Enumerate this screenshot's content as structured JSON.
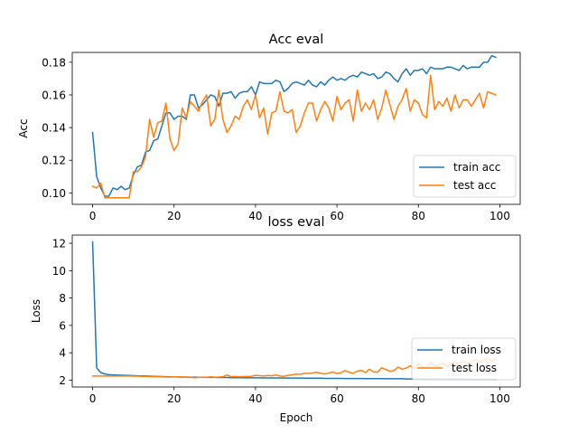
{
  "chart_data": [
    {
      "type": "line",
      "title": "Acc eval",
      "xlabel": "",
      "ylabel": "Acc",
      "xlim": [
        -5,
        105
      ],
      "ylim": [
        0.093,
        0.186
      ],
      "xticks": [
        0,
        20,
        40,
        60,
        80,
        100
      ],
      "yticks": [
        0.1,
        0.12,
        0.14,
        0.16,
        0.18
      ],
      "ytick_labels": [
        "0.10",
        "0.12",
        "0.14",
        "0.16",
        "0.18"
      ],
      "legend": "lower-right",
      "grid": false,
      "series": [
        {
          "name": "train acc",
          "color": "#1f77b4",
          "x": [
            0,
            1,
            2,
            3,
            4,
            5,
            6,
            7,
            8,
            9,
            10,
            11,
            12,
            13,
            14,
            15,
            16,
            17,
            18,
            19,
            20,
            21,
            22,
            23,
            24,
            25,
            26,
            27,
            28,
            29,
            30,
            31,
            32,
            33,
            34,
            35,
            36,
            37,
            38,
            39,
            40,
            41,
            42,
            43,
            44,
            45,
            46,
            47,
            48,
            49,
            50,
            51,
            52,
            53,
            54,
            55,
            56,
            57,
            58,
            59,
            60,
            61,
            62,
            63,
            64,
            65,
            66,
            67,
            68,
            69,
            70,
            71,
            72,
            73,
            74,
            75,
            76,
            77,
            78,
            79,
            80,
            81,
            82,
            83,
            84,
            85,
            86,
            87,
            88,
            89,
            90,
            91,
            92,
            93,
            94,
            95,
            96,
            97,
            98,
            99
          ],
          "values": [
            0.137,
            0.11,
            0.103,
            0.098,
            0.098,
            0.103,
            0.102,
            0.104,
            0.102,
            0.103,
            0.111,
            0.116,
            0.117,
            0.125,
            0.126,
            0.132,
            0.133,
            0.141,
            0.149,
            0.149,
            0.145,
            0.147,
            0.147,
            0.145,
            0.16,
            0.16,
            0.152,
            0.154,
            0.157,
            0.16,
            0.159,
            0.153,
            0.161,
            0.161,
            0.162,
            0.158,
            0.161,
            0.162,
            0.162,
            0.165,
            0.16,
            0.168,
            0.167,
            0.167,
            0.167,
            0.169,
            0.168,
            0.162,
            0.164,
            0.167,
            0.168,
            0.167,
            0.166,
            0.169,
            0.166,
            0.165,
            0.168,
            0.166,
            0.169,
            0.171,
            0.169,
            0.17,
            0.169,
            0.171,
            0.172,
            0.171,
            0.174,
            0.173,
            0.172,
            0.173,
            0.17,
            0.171,
            0.174,
            0.173,
            0.17,
            0.168,
            0.173,
            0.176,
            0.172,
            0.175,
            0.175,
            0.176,
            0.173,
            0.177,
            0.176,
            0.176,
            0.176,
            0.177,
            0.177,
            0.176,
            0.175,
            0.178,
            0.176,
            0.177,
            0.177,
            0.177,
            0.18,
            0.18,
            0.184,
            0.183
          ]
        },
        {
          "name": "test acc",
          "color": "#ff7f0e",
          "x": [
            0,
            1,
            2,
            3,
            4,
            5,
            6,
            7,
            8,
            9,
            10,
            11,
            12,
            13,
            14,
            15,
            16,
            17,
            18,
            19,
            20,
            21,
            22,
            23,
            24,
            25,
            26,
            27,
            28,
            29,
            30,
            31,
            32,
            33,
            34,
            35,
            36,
            37,
            38,
            39,
            40,
            41,
            42,
            43,
            44,
            45,
            46,
            47,
            48,
            49,
            50,
            51,
            52,
            53,
            54,
            55,
            56,
            57,
            58,
            59,
            60,
            61,
            62,
            63,
            64,
            65,
            66,
            67,
            68,
            69,
            70,
            71,
            72,
            73,
            74,
            75,
            76,
            77,
            78,
            79,
            80,
            81,
            82,
            83,
            84,
            85,
            86,
            87,
            88,
            89,
            90,
            91,
            92,
            93,
            94,
            95,
            96,
            97,
            98,
            99
          ],
          "values": [
            0.104,
            0.103,
            0.106,
            0.097,
            0.097,
            0.097,
            0.097,
            0.097,
            0.097,
            0.097,
            0.113,
            0.113,
            0.116,
            0.122,
            0.145,
            0.134,
            0.143,
            0.144,
            0.155,
            0.133,
            0.126,
            0.13,
            0.152,
            0.146,
            0.156,
            0.153,
            0.15,
            0.156,
            0.16,
            0.141,
            0.145,
            0.163,
            0.145,
            0.137,
            0.141,
            0.147,
            0.145,
            0.153,
            0.157,
            0.151,
            0.16,
            0.146,
            0.152,
            0.136,
            0.149,
            0.15,
            0.162,
            0.15,
            0.149,
            0.151,
            0.137,
            0.141,
            0.149,
            0.155,
            0.155,
            0.144,
            0.151,
            0.156,
            0.152,
            0.144,
            0.159,
            0.151,
            0.155,
            0.157,
            0.144,
            0.163,
            0.15,
            0.155,
            0.151,
            0.157,
            0.145,
            0.152,
            0.163,
            0.154,
            0.145,
            0.153,
            0.157,
            0.164,
            0.15,
            0.157,
            0.155,
            0.148,
            0.146,
            0.172,
            0.151,
            0.156,
            0.153,
            0.158,
            0.15,
            0.16,
            0.152,
            0.157,
            0.157,
            0.153,
            0.157,
            0.161,
            0.152,
            0.162,
            0.161,
            0.16
          ]
        }
      ]
    },
    {
      "type": "line",
      "title": "loss eval",
      "xlabel": "Epoch",
      "ylabel": "Loss",
      "xlim": [
        -5,
        105
      ],
      "ylim": [
        1.5,
        12.6
      ],
      "xticks": [
        0,
        20,
        40,
        60,
        80,
        100
      ],
      "yticks": [
        2,
        4,
        6,
        8,
        10,
        12
      ],
      "ytick_labels": [
        "2",
        "4",
        "6",
        "8",
        "10",
        "12"
      ],
      "legend": "lower-right",
      "grid": false,
      "series": [
        {
          "name": "train loss",
          "color": "#1f77b4",
          "x": [
            0,
            1,
            2,
            3,
            4,
            5,
            6,
            7,
            8,
            9,
            10,
            11,
            12,
            13,
            14,
            15,
            16,
            17,
            18,
            19,
            20,
            21,
            22,
            23,
            24,
            25,
            26,
            27,
            28,
            29,
            30,
            31,
            32,
            33,
            34,
            35,
            36,
            37,
            38,
            39,
            40,
            41,
            42,
            43,
            44,
            45,
            46,
            47,
            48,
            49,
            50,
            51,
            52,
            53,
            54,
            55,
            56,
            57,
            58,
            59,
            60,
            61,
            62,
            63,
            64,
            65,
            66,
            67,
            68,
            69,
            70,
            71,
            72,
            73,
            74,
            75,
            76,
            77,
            78,
            79,
            80,
            81,
            82,
            83,
            84,
            85,
            86,
            87,
            88,
            89,
            90,
            91,
            92,
            93,
            94,
            95,
            96,
            97,
            98,
            99
          ],
          "values": [
            12.1,
            2.9,
            2.55,
            2.45,
            2.4,
            2.38,
            2.37,
            2.36,
            2.35,
            2.34,
            2.33,
            2.32,
            2.31,
            2.3,
            2.29,
            2.28,
            2.27,
            2.26,
            2.25,
            2.24,
            2.24,
            2.23,
            2.23,
            2.22,
            2.22,
            2.22,
            2.21,
            2.21,
            2.2,
            2.2,
            2.2,
            2.19,
            2.19,
            2.19,
            2.18,
            2.18,
            2.18,
            2.18,
            2.17,
            2.17,
            2.17,
            2.17,
            2.16,
            2.16,
            2.16,
            2.16,
            2.16,
            2.15,
            2.15,
            2.15,
            2.15,
            2.15,
            2.14,
            2.14,
            2.14,
            2.14,
            2.14,
            2.13,
            2.13,
            2.13,
            2.13,
            2.13,
            2.12,
            2.12,
            2.12,
            2.12,
            2.12,
            2.11,
            2.11,
            2.11,
            2.11,
            2.11,
            2.1,
            2.1,
            2.1,
            2.1,
            2.1,
            2.09,
            2.09,
            2.09,
            2.09,
            2.09,
            2.08,
            2.08,
            2.08,
            2.08,
            2.08,
            2.07,
            2.07,
            2.07,
            2.07,
            2.07,
            2.06,
            2.06,
            2.06,
            2.06,
            2.06,
            2.05,
            2.05,
            2.05
          ]
        },
        {
          "name": "test loss",
          "color": "#ff7f0e",
          "x": [
            0,
            1,
            2,
            3,
            4,
            5,
            6,
            7,
            8,
            9,
            10,
            11,
            12,
            13,
            14,
            15,
            16,
            17,
            18,
            19,
            20,
            21,
            22,
            23,
            24,
            25,
            26,
            27,
            28,
            29,
            30,
            31,
            32,
            33,
            34,
            35,
            36,
            37,
            38,
            39,
            40,
            41,
            42,
            43,
            44,
            45,
            46,
            47,
            48,
            49,
            50,
            51,
            52,
            53,
            54,
            55,
            56,
            57,
            58,
            59,
            60,
            61,
            62,
            63,
            64,
            65,
            66,
            67,
            68,
            69,
            70,
            71,
            72,
            73,
            74,
            75,
            76,
            77,
            78,
            79,
            80,
            81,
            82,
            83,
            84,
            85,
            86,
            87,
            88,
            89,
            90,
            91,
            92,
            93,
            94,
            95,
            96,
            97,
            98,
            99
          ],
          "values": [
            2.3,
            2.3,
            2.3,
            2.3,
            2.3,
            2.3,
            2.3,
            2.3,
            2.3,
            2.3,
            2.29,
            2.29,
            2.28,
            2.27,
            2.26,
            2.25,
            2.25,
            2.24,
            2.23,
            2.23,
            2.24,
            2.24,
            2.23,
            2.23,
            2.22,
            2.18,
            2.2,
            2.22,
            2.21,
            2.24,
            2.22,
            2.23,
            2.25,
            2.38,
            2.25,
            2.27,
            2.25,
            2.26,
            2.27,
            2.28,
            2.35,
            2.33,
            2.3,
            2.34,
            2.32,
            2.38,
            2.3,
            2.28,
            2.35,
            2.38,
            2.45,
            2.42,
            2.5,
            2.48,
            2.52,
            2.58,
            2.5,
            2.45,
            2.52,
            2.6,
            2.48,
            2.55,
            2.7,
            2.58,
            2.5,
            2.65,
            2.72,
            2.55,
            2.8,
            2.6,
            2.58,
            2.9,
            2.78,
            2.65,
            2.7,
            2.95,
            2.8,
            2.88,
            3.05,
            2.85,
            3.2,
            2.95,
            2.9,
            3.3,
            3.05,
            3.1,
            3.25,
            3.0,
            3.2,
            3.35,
            3.1,
            3.4,
            3.25,
            3.3,
            3.5,
            3.35,
            3.45,
            3.6,
            3.4,
            3.55
          ]
        }
      ]
    }
  ]
}
